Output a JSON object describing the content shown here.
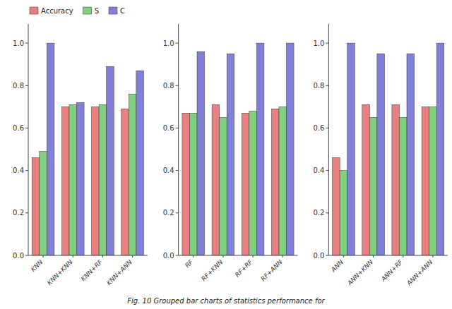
{
  "chart_data": [
    {
      "type": "bar",
      "categories": [
        "KNN",
        "KNN+KNN",
        "KNN+RF",
        "KNN+ANN"
      ],
      "series": [
        {
          "name": "Accuracy",
          "color": "#e88080",
          "values": [
            0.46,
            0.7,
            0.7,
            0.69
          ]
        },
        {
          "name": "S",
          "color": "#80d080",
          "values": [
            0.49,
            0.71,
            0.71,
            0.76
          ]
        },
        {
          "name": "C",
          "color": "#8080d8",
          "values": [
            1.0,
            0.72,
            0.89,
            0.87
          ]
        }
      ],
      "ylim": [
        0.0,
        1.09
      ],
      "yticks": [
        {
          "value": 0.0,
          "label": "0.0"
        },
        0.2,
        0.4,
        0.6,
        0.8,
        {
          "value": 1.0,
          "label": "1.0"
        }
      ],
      "grid": false,
      "legend": "upper left",
      "annotations": [
        "Fig. 10   Grouped bar charts of statistics performance for"
      ]
    },
    {
      "type": "bar",
      "categories": [
        "RF",
        "RF+KNN",
        "RF+RF",
        "RF+ANN"
      ],
      "series": [
        {
          "name": "Accuracy",
          "color": "#e88080",
          "values": [
            0.67,
            0.71,
            0.67,
            0.69
          ]
        },
        {
          "name": "S",
          "color": "#80d080",
          "values": [
            0.67,
            0.65,
            0.68,
            0.7
          ]
        },
        {
          "name": "C",
          "color": "#8080d8",
          "values": [
            0.96,
            0.95,
            1.0,
            1.0
          ]
        }
      ],
      "ylim": [
        0.0,
        1.09
      ],
      "yticks": [
        {
          "value": 0.0,
          "label": "0.0"
        },
        0.2,
        0.4,
        0.6,
        0.8,
        {
          "value": 1.0,
          "label": "1.0"
        }
      ],
      "grid": false
    },
    {
      "type": "bar",
      "categories": [
        "ANN",
        "ANN+KNN",
        "ANN+RF",
        "ANN+ANN"
      ],
      "series": [
        {
          "name": "Accuracy",
          "color": "#e88080",
          "values": [
            0.46,
            0.71,
            0.71,
            0.7
          ]
        },
        {
          "name": "S",
          "color": "#80d080",
          "values": [
            0.4,
            0.65,
            0.65,
            0.7
          ]
        },
        {
          "name": "C",
          "color": "#8080d8",
          "values": [
            1.0,
            0.95,
            0.95,
            1.0
          ]
        }
      ],
      "ylim": [
        0.0,
        1.09
      ],
      "yticks": [
        {
          "value": 0.0,
          "label": "0.0"
        },
        0.2,
        0.4,
        0.6,
        0.8,
        {
          "value": 1.0,
          "label": "1.0"
        }
      ],
      "grid": false
    }
  ]
}
